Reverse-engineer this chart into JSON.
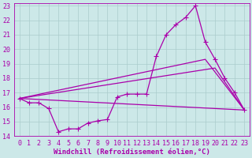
{
  "xlabel": "Windchill (Refroidissement éolien,°C)",
  "background_color": "#cce8e8",
  "grid_color": "#aacccc",
  "line_color": "#aa00aa",
  "xlim": [
    -0.5,
    23.5
  ],
  "ylim": [
    14,
    23.2
  ],
  "xticks": [
    0,
    1,
    2,
    3,
    4,
    5,
    6,
    7,
    8,
    9,
    10,
    11,
    12,
    13,
    14,
    15,
    16,
    17,
    18,
    19,
    20,
    21,
    22,
    23
  ],
  "yticks": [
    14,
    15,
    16,
    17,
    18,
    19,
    20,
    21,
    22,
    23
  ],
  "line1_x": [
    0,
    1,
    2,
    3,
    4,
    5,
    6,
    7,
    8,
    9,
    10,
    11,
    12,
    13,
    14,
    15,
    16,
    17,
    18,
    19,
    20,
    21,
    22,
    23
  ],
  "line1_y": [
    16.6,
    16.3,
    16.3,
    15.9,
    14.3,
    14.5,
    14.5,
    14.9,
    15.05,
    15.15,
    16.7,
    16.9,
    16.9,
    16.9,
    19.5,
    21.0,
    21.7,
    22.2,
    23.0,
    20.5,
    19.3,
    18.0,
    17.0,
    15.8
  ],
  "line2_x": [
    0,
    23
  ],
  "line2_y": [
    16.6,
    15.8
  ],
  "line3_x": [
    0,
    20,
    23
  ],
  "line3_y": [
    16.6,
    18.7,
    15.8
  ],
  "line4_x": [
    0,
    19,
    23
  ],
  "line4_y": [
    16.6,
    19.3,
    15.8
  ],
  "markersize": 2.5,
  "linewidth": 0.9,
  "xlabel_fontsize": 6.5,
  "tick_fontsize": 6.0
}
